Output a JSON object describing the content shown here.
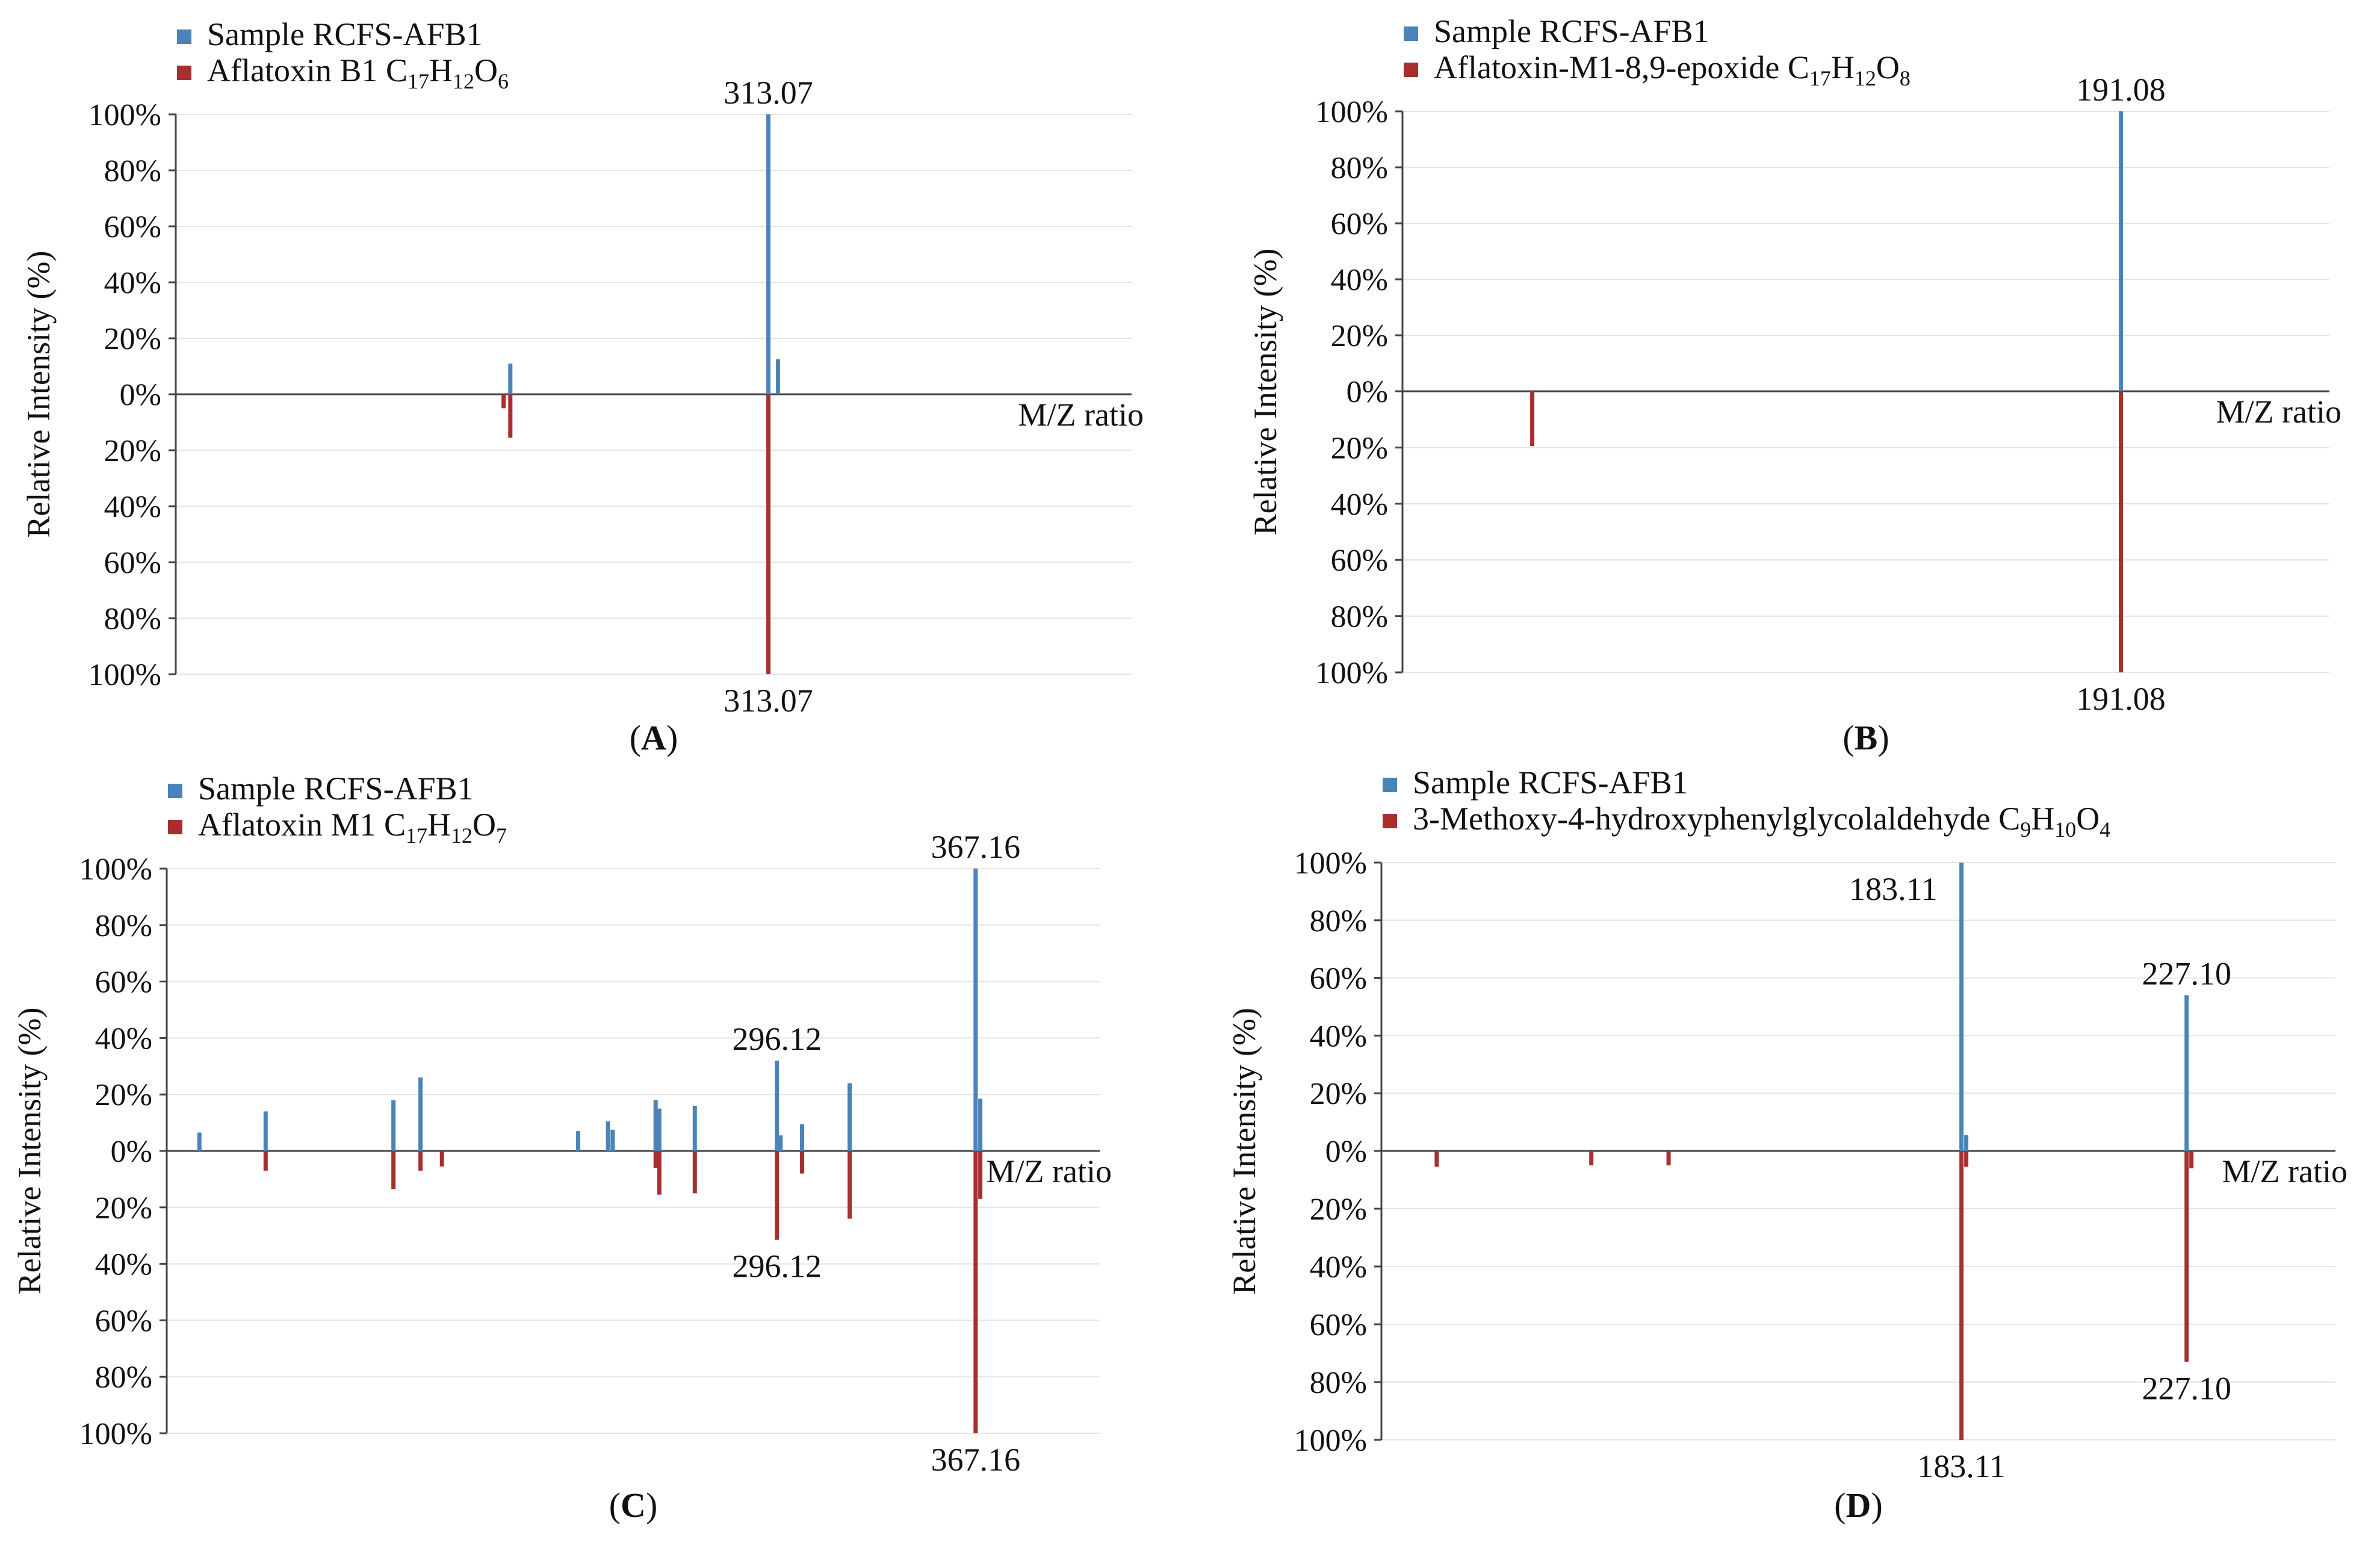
{
  "chart_data": [
    {
      "type": "bar",
      "panel_label": "A",
      "title": "",
      "xlabel": "M/Z ratio",
      "ylabel": "Relative Intensity (%)",
      "y_ticks_top": [
        "100%",
        "80%",
        "60%",
        "40%",
        "20%",
        "0%"
      ],
      "y_ticks_bottom": [
        "20%",
        "40%",
        "60%",
        "80%",
        "100%"
      ],
      "ylim": [
        -100,
        100
      ],
      "xlim": [
        0,
        100
      ],
      "grid": true,
      "legend_position": "top-left",
      "series": [
        {
          "name": "Sample RCFS-AFB1",
          "formula": "",
          "color": "#4a83b8",
          "direction": "up",
          "points": [
            {
              "x": 35,
              "y": 11
            },
            {
              "x": 62,
              "y": 100
            },
            {
              "x": 63,
              "y": 12.5
            }
          ]
        },
        {
          "name": "Aflatoxin B1",
          "formula": [
            "C",
            "17",
            "H",
            "12",
            "O",
            "6"
          ],
          "color": "#a72f2f",
          "direction": "down",
          "points": [
            {
              "x": 34.3,
              "y": 5
            },
            {
              "x": 35,
              "y": 15.5
            },
            {
              "x": 62,
              "y": 100
            }
          ]
        }
      ],
      "annotations": [
        {
          "text": "313.07",
          "x": 62,
          "y": 100,
          "pos": "above"
        },
        {
          "text": "313.07",
          "x": 62,
          "y": -100,
          "pos": "below"
        }
      ]
    },
    {
      "type": "bar",
      "panel_label": "B",
      "title": "",
      "xlabel": "M/Z ratio",
      "ylabel": "Relative Intensity (%)",
      "y_ticks_top": [
        "100%",
        "80%",
        "60%",
        "40%",
        "20%",
        "0%"
      ],
      "y_ticks_bottom": [
        "20%",
        "40%",
        "60%",
        "80%",
        "100%"
      ],
      "ylim": [
        -100,
        100
      ],
      "xlim": [
        0,
        100
      ],
      "grid": true,
      "legend_position": "top-left",
      "series": [
        {
          "name": "Sample RCFS-AFB1",
          "formula": "",
          "color": "#4a83b8",
          "direction": "up",
          "points": [
            {
              "x": 77.5,
              "y": 100
            }
          ]
        },
        {
          "name": "Aflatoxin-M1-8,9-epoxide",
          "formula": [
            "C",
            "17",
            "H",
            "12",
            "O",
            "8"
          ],
          "color": "#a72f2f",
          "direction": "down",
          "points": [
            {
              "x": 14,
              "y": 19.5
            },
            {
              "x": 77.5,
              "y": 100
            }
          ]
        }
      ],
      "annotations": [
        {
          "text": "191.08",
          "x": 77.5,
          "y": 100,
          "pos": "above"
        },
        {
          "text": "191.08",
          "x": 77.5,
          "y": -100,
          "pos": "below"
        }
      ]
    },
    {
      "type": "bar",
      "panel_label": "C",
      "title": "",
      "xlabel": "M/Z ratio",
      "ylabel": "Relative Intensity (%)",
      "y_ticks_top": [
        "100%",
        "80%",
        "60%",
        "40%",
        "20%",
        "0%"
      ],
      "y_ticks_bottom": [
        "20%",
        "40%",
        "60%",
        "80%",
        "100%"
      ],
      "ylim": [
        -100,
        100
      ],
      "xlim": [
        0,
        100
      ],
      "grid": true,
      "legend_position": "top-left",
      "series": [
        {
          "name": "Sample RCFS-AFB1",
          "formula": "",
          "color": "#4a83b8",
          "direction": "up",
          "points": [
            {
              "x": 3.5,
              "y": 6.5
            },
            {
              "x": 10.6,
              "y": 14
            },
            {
              "x": 24.3,
              "y": 18
            },
            {
              "x": 27.2,
              "y": 26
            },
            {
              "x": 44.1,
              "y": 7
            },
            {
              "x": 47.3,
              "y": 10.5
            },
            {
              "x": 47.8,
              "y": 7.5
            },
            {
              "x": 52.4,
              "y": 18
            },
            {
              "x": 52.8,
              "y": 15
            },
            {
              "x": 56.6,
              "y": 16
            },
            {
              "x": 65.4,
              "y": 32
            },
            {
              "x": 65.8,
              "y": 5.5
            },
            {
              "x": 68.1,
              "y": 9.5
            },
            {
              "x": 73.2,
              "y": 24
            },
            {
              "x": 86.7,
              "y": 100
            },
            {
              "x": 87.2,
              "y": 18.5
            }
          ]
        },
        {
          "name": "Aflatoxin M1",
          "formula": [
            "C",
            "17",
            "H",
            "12",
            "O",
            "7"
          ],
          "color": "#a72f2f",
          "direction": "down",
          "points": [
            {
              "x": 10.6,
              "y": 7
            },
            {
              "x": 24.3,
              "y": 13.5
            },
            {
              "x": 27.2,
              "y": 7
            },
            {
              "x": 29.5,
              "y": 5.5
            },
            {
              "x": 52.4,
              "y": 6
            },
            {
              "x": 52.8,
              "y": 15.5
            },
            {
              "x": 56.6,
              "y": 15
            },
            {
              "x": 65.4,
              "y": 31.5
            },
            {
              "x": 68.1,
              "y": 8
            },
            {
              "x": 73.2,
              "y": 24
            },
            {
              "x": 86.7,
              "y": 100
            },
            {
              "x": 87.2,
              "y": 17
            }
          ]
        }
      ],
      "annotations": [
        {
          "text": "367.16",
          "x": 86.7,
          "y": 100,
          "pos": "above"
        },
        {
          "text": "367.16",
          "x": 86.7,
          "y": -100,
          "pos": "below"
        },
        {
          "text": "296.12",
          "x": 65.4,
          "y": 32,
          "pos": "above"
        },
        {
          "text": "296.12",
          "x": 65.4,
          "y": -31.5,
          "pos": "below"
        }
      ]
    },
    {
      "type": "bar",
      "panel_label": "D",
      "title": "",
      "xlabel": "M/Z ratio",
      "ylabel": "Relative Intensity (%)",
      "y_ticks_top": [
        "100%",
        "80%",
        "60%",
        "40%",
        "20%",
        "0%"
      ],
      "y_ticks_bottom": [
        "20%",
        "40%",
        "60%",
        "80%",
        "100%"
      ],
      "ylim": [
        -100,
        100
      ],
      "xlim": [
        0,
        100
      ],
      "grid": true,
      "legend_position": "top-left",
      "series": [
        {
          "name": "Sample RCFS-AFB1",
          "formula": "",
          "color": "#4a83b8",
          "direction": "up",
          "points": [
            {
              "x": 60.8,
              "y": 100
            },
            {
              "x": 61.3,
              "y": 5.5
            },
            {
              "x": 84.4,
              "y": 54
            }
          ]
        },
        {
          "name": "3-Methoxy-4-hydroxyphenylglycolaldehyde",
          "formula": [
            "C",
            "9",
            "H",
            "10",
            "O",
            "4"
          ],
          "color": "#a72f2f",
          "direction": "down",
          "points": [
            {
              "x": 5.8,
              "y": 5.5
            },
            {
              "x": 22,
              "y": 5
            },
            {
              "x": 30.1,
              "y": 5
            },
            {
              "x": 60.8,
              "y": 100
            },
            {
              "x": 61.3,
              "y": 5.5
            },
            {
              "x": 84.4,
              "y": 73
            },
            {
              "x": 84.9,
              "y": 6
            }
          ]
        }
      ],
      "annotations": [
        {
          "text": "183.11",
          "x": 60.8,
          "y": 100,
          "pos": "left-below-top"
        },
        {
          "text": "183.11",
          "x": 60.8,
          "y": -100,
          "pos": "below"
        },
        {
          "text": "227.10",
          "x": 84.4,
          "y": 54,
          "pos": "above"
        },
        {
          "text": "227.10",
          "x": 84.4,
          "y": -73,
          "pos": "below"
        }
      ]
    }
  ]
}
